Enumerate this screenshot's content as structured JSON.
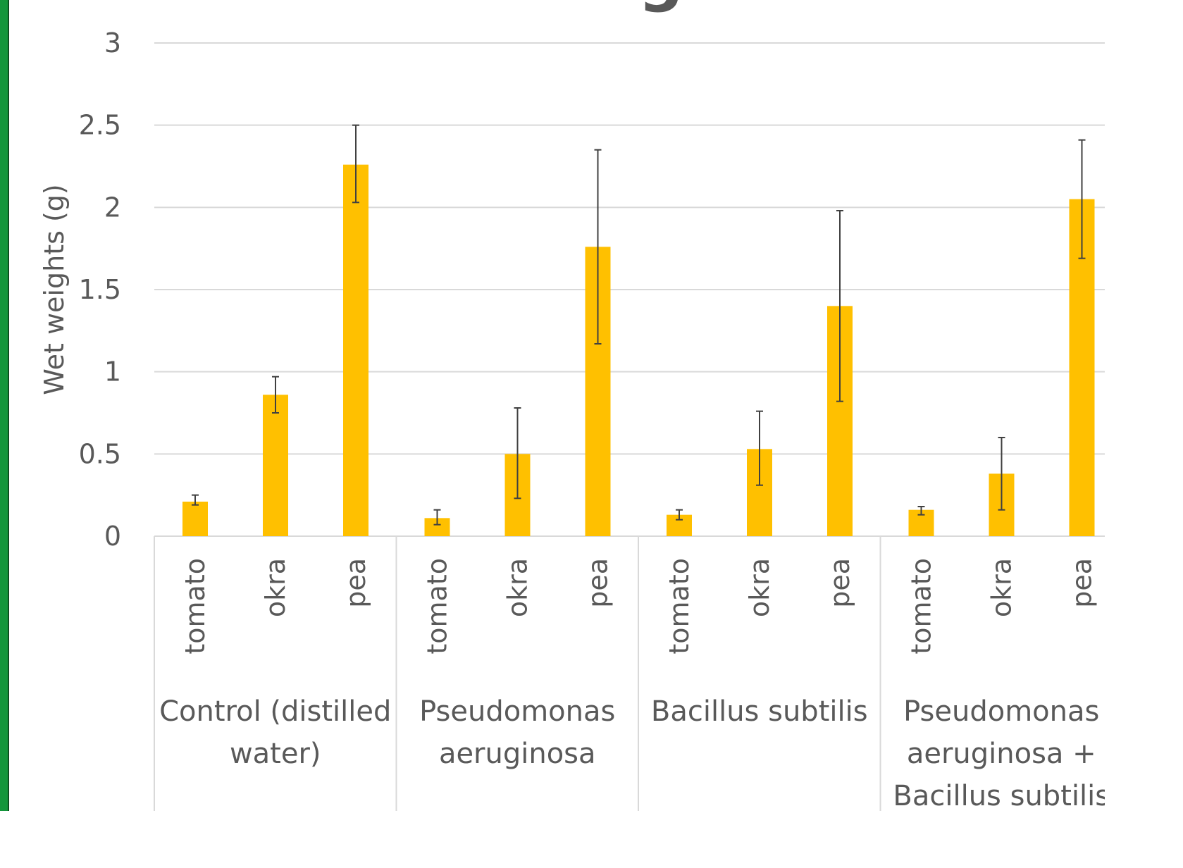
{
  "colors": {
    "bar": "#ffc000",
    "grid": "#d9d9d9",
    "text": "#595959",
    "error_bar": "#404040",
    "left_edge": "#14963c"
  },
  "chart_data": {
    "type": "bar",
    "title_fragment": "g",
    "ylabel": "Wet weights (g)",
    "ylim": [
      0,
      3
    ],
    "yticks": [
      "0",
      "0.5",
      "1",
      "1.5",
      "2",
      "2.5",
      "3"
    ],
    "grid": true,
    "groups": [
      {
        "label_lines": [
          "Control (distilled",
          "water)"
        ]
      },
      {
        "label_lines": [
          "Pseudomonas",
          "aeruginosa"
        ]
      },
      {
        "label_lines": [
          "Bacillus subtilis"
        ]
      },
      {
        "label_lines": [
          "Pseudomonas",
          "aeruginosa +",
          "Bacillus subtilis"
        ]
      }
    ],
    "bars": [
      {
        "group": 0,
        "category": "tomato",
        "value": 0.21,
        "err_low": 0.19,
        "err_high": 0.25
      },
      {
        "group": 0,
        "category": "okra",
        "value": 0.86,
        "err_low": 0.75,
        "err_high": 0.97
      },
      {
        "group": 0,
        "category": "pea",
        "value": 2.26,
        "err_low": 2.03,
        "err_high": 2.5
      },
      {
        "group": 1,
        "category": "tomato",
        "value": 0.11,
        "err_low": 0.07,
        "err_high": 0.16
      },
      {
        "group": 1,
        "category": "okra",
        "value": 0.5,
        "err_low": 0.23,
        "err_high": 0.78
      },
      {
        "group": 1,
        "category": "pea",
        "value": 1.76,
        "err_low": 1.17,
        "err_high": 2.35
      },
      {
        "group": 2,
        "category": "tomato",
        "value": 0.13,
        "err_low": 0.1,
        "err_high": 0.16
      },
      {
        "group": 2,
        "category": "okra",
        "value": 0.53,
        "err_low": 0.31,
        "err_high": 0.76
      },
      {
        "group": 2,
        "category": "pea",
        "value": 1.4,
        "err_low": 0.82,
        "err_high": 1.98
      },
      {
        "group": 3,
        "category": "tomato",
        "value": 0.16,
        "err_low": 0.13,
        "err_high": 0.18
      },
      {
        "group": 3,
        "category": "okra",
        "value": 0.38,
        "err_low": 0.16,
        "err_high": 0.6
      },
      {
        "group": 3,
        "category": "pea",
        "value": 2.05,
        "err_low": 1.69,
        "err_high": 2.41
      }
    ]
  }
}
